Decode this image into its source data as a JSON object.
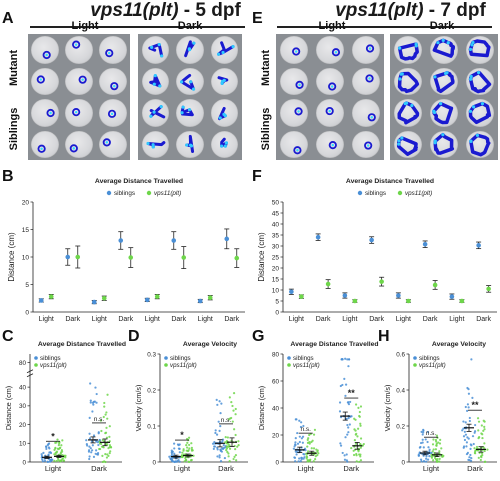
{
  "figure": {
    "title_left": {
      "italic": "vps11(plt)",
      "rest": " - 5 dpf"
    },
    "title_right": {
      "italic": "vps11(plt)",
      "rest": " - 7 dpf"
    },
    "panel_letters": {
      "A": "A",
      "B": "B",
      "C": "C",
      "D": "D",
      "E": "E",
      "F": "F",
      "G": "G",
      "H": "H"
    },
    "column_light": "Light",
    "column_dark": "Dark",
    "row_mutant": "Mutant",
    "row_siblings": "Siblings"
  },
  "colors": {
    "siblings": "#4a8fd6",
    "mutant": "#6ed64a",
    "track_dark": "#1a1ad0",
    "tray": "#8a8e93"
  },
  "chart_data": [
    {
      "panel": "B",
      "type": "scatter",
      "title": "Average Distance Travelled",
      "ylabel": "Distance (cm)",
      "xlabel": "",
      "ylim": [
        0,
        20
      ],
      "yticks": [
        0,
        5,
        10,
        15,
        20
      ],
      "categories": [
        "Light",
        "Dark",
        "Light",
        "Dark",
        "Light",
        "Dark",
        "Light",
        "Dark"
      ],
      "legend": [
        "siblings",
        "vps11(plt)"
      ],
      "legend_position": "top",
      "series": [
        {
          "name": "siblings",
          "values": [
            2.1,
            10.0,
            1.8,
            13.0,
            2.2,
            13.0,
            2.0,
            13.3
          ],
          "err": [
            0.3,
            1.5,
            0.3,
            1.6,
            0.3,
            1.6,
            0.3,
            1.8
          ]
        },
        {
          "name": "vps11(plt)",
          "values": [
            2.8,
            10.0,
            2.5,
            9.9,
            2.8,
            9.9,
            2.6,
            9.8
          ],
          "err": [
            0.4,
            2.0,
            0.4,
            1.8,
            0.4,
            2.0,
            0.4,
            1.7
          ]
        }
      ]
    },
    {
      "panel": "F",
      "type": "scatter",
      "title": "Average Distance Travelled",
      "ylabel": "Distance (cm)",
      "xlabel": "",
      "ylim": [
        0,
        50
      ],
      "yticks": [
        0,
        5,
        10,
        15,
        20,
        25,
        30,
        35,
        40,
        45,
        50
      ],
      "categories": [
        "Light",
        "Dark",
        "Light",
        "Dark",
        "Light",
        "Dark",
        "Light",
        "Dark"
      ],
      "legend": [
        "siblings",
        "vps11(plt)"
      ],
      "legend_position": "top",
      "series": [
        {
          "name": "siblings",
          "values": [
            9.2,
            34.0,
            7.5,
            32.7,
            7.5,
            30.8,
            7.0,
            30.3
          ],
          "err": [
            1.2,
            1.5,
            1.2,
            1.5,
            1.2,
            1.5,
            1.2,
            1.5
          ]
        },
        {
          "name": "vps11(plt)",
          "values": [
            7.0,
            12.7,
            5.0,
            13.8,
            5.0,
            12.3,
            5.0,
            10.5
          ],
          "err": [
            0.8,
            2.0,
            0.6,
            2.0,
            0.6,
            2.0,
            0.6,
            1.5
          ]
        }
      ]
    },
    {
      "panel": "C",
      "type": "scatter",
      "title": "Average Distance Travelled",
      "ylabel": "Distance (cm)",
      "ylim": [
        0,
        85
      ],
      "yticks": [
        0,
        10,
        20,
        30,
        40,
        80
      ],
      "axis_break": [
        45,
        75
      ],
      "categories": [
        "Light",
        "Dark"
      ],
      "legend": [
        "siblings",
        "vps11(plt)"
      ],
      "significance": [
        {
          "category": "Light",
          "label": "*"
        },
        {
          "category": "Dark",
          "label": "n.s."
        }
      ],
      "series": [
        {
          "name": "siblings",
          "means": [
            2.5,
            11.8
          ],
          "err": [
            0.6,
            1.6
          ]
        },
        {
          "name": "vps11(plt)",
          "means": [
            3.0,
            10.5
          ],
          "err": [
            0.6,
            1.8
          ]
        }
      ]
    },
    {
      "panel": "D",
      "type": "scatter",
      "title": "Average Velocity",
      "ylabel": "Velocity (cm/s)",
      "ylim": [
        0,
        0.3
      ],
      "yticks": [
        0.0,
        0.1,
        0.2,
        0.3
      ],
      "categories": [
        "Light",
        "Dark"
      ],
      "legend": [
        "siblings",
        "vps11(plt)"
      ],
      "significance": [
        {
          "category": "Light",
          "label": "*"
        },
        {
          "category": "Dark",
          "label": "n.s."
        }
      ],
      "series": [
        {
          "name": "siblings",
          "means": [
            0.015,
            0.052
          ],
          "err": [
            0.004,
            0.01
          ]
        },
        {
          "name": "vps11(plt)",
          "means": [
            0.018,
            0.055
          ],
          "err": [
            0.004,
            0.012
          ]
        }
      ]
    },
    {
      "panel": "G",
      "type": "scatter",
      "title": "Average Distance Travelled",
      "ylabel": "Distance (cm)",
      "ylim": [
        0,
        80
      ],
      "yticks": [
        0,
        20,
        40,
        60,
        80
      ],
      "categories": [
        "Light",
        "Dark"
      ],
      "legend": [
        "siblings",
        "vps11(plt)"
      ],
      "significance": [
        {
          "category": "Light",
          "label": "n.s."
        },
        {
          "category": "Dark",
          "label": "**"
        }
      ],
      "series": [
        {
          "name": "siblings",
          "means": [
            9.0,
            34.0
          ],
          "err": [
            2.0,
            3.0
          ]
        },
        {
          "name": "vps11(plt)",
          "means": [
            6.5,
            12.0
          ],
          "err": [
            1.5,
            2.5
          ]
        }
      ]
    },
    {
      "panel": "H",
      "type": "scatter",
      "title": "Average Velocity",
      "ylabel": "Velocity (cm/s)",
      "ylim": [
        0,
        0.6
      ],
      "yticks": [
        0.0,
        0.2,
        0.4,
        0.6
      ],
      "categories": [
        "Light",
        "Dark"
      ],
      "legend": [
        "siblings",
        "vps11(plt)"
      ],
      "significance": [
        {
          "category": "Light",
          "label": "n.s."
        },
        {
          "category": "Dark",
          "label": "**"
        }
      ],
      "series": [
        {
          "name": "siblings",
          "means": [
            0.05,
            0.19
          ],
          "err": [
            0.01,
            0.02
          ]
        },
        {
          "name": "vps11(plt)",
          "means": [
            0.04,
            0.07
          ],
          "err": [
            0.01,
            0.015
          ]
        }
      ]
    }
  ]
}
